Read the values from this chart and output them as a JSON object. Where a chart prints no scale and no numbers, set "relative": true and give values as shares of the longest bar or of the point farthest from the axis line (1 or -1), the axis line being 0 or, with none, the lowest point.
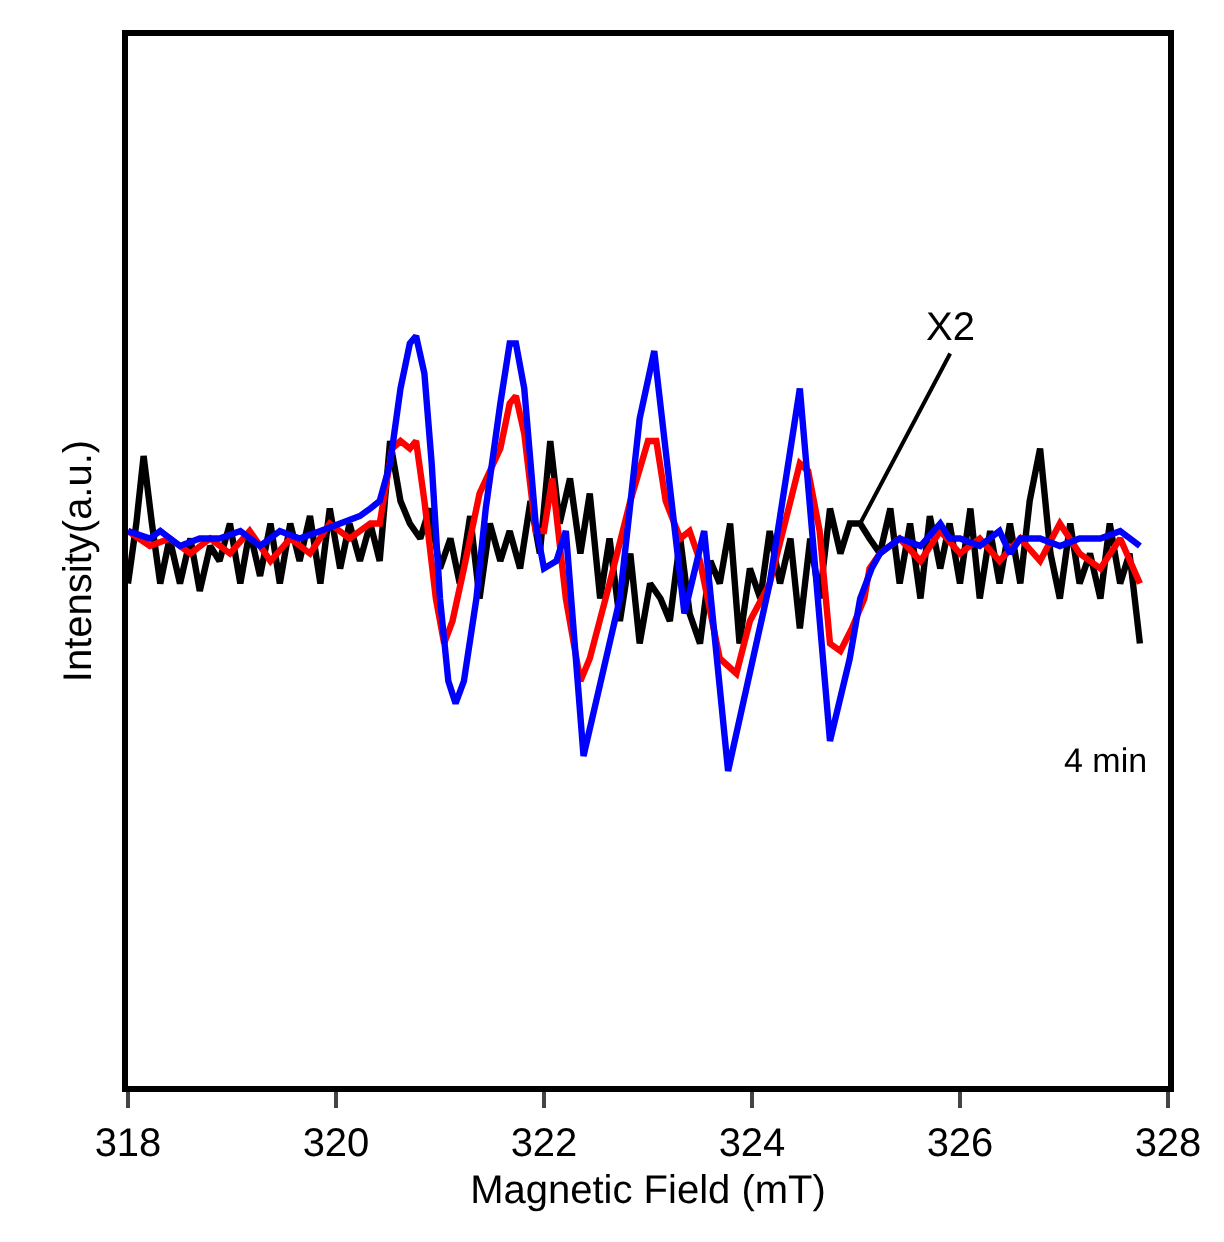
{
  "chart_data": {
    "type": "line",
    "relative": true,
    "xlabel": "Magnetic Field (mT)",
    "ylabel": "Intensity(a.u.)",
    "xlim": [
      318,
      328
    ],
    "xticks": [
      318,
      320,
      322,
      324,
      326,
      328
    ],
    "tick_labels": "x",
    "annotations": [
      {
        "text": "X2",
        "x": 325.04,
        "y": 0.75
      },
      "4 min"
    ],
    "series": [
      {
        "color": "#000000",
        "x": [
          318.0,
          318.08,
          318.15,
          318.23,
          318.31,
          318.4,
          318.5,
          318.6,
          318.69,
          318.79,
          318.88,
          318.98,
          319.08,
          319.17,
          319.27,
          319.37,
          319.46,
          319.56,
          319.65,
          319.75,
          319.85,
          319.94,
          320.04,
          320.13,
          320.23,
          320.33,
          320.42,
          320.52,
          320.62,
          320.71,
          320.81,
          320.9,
          321.0,
          321.1,
          321.19,
          321.29,
          321.38,
          321.48,
          321.58,
          321.67,
          321.77,
          321.87,
          321.96,
          322.06,
          322.15,
          322.25,
          322.35,
          322.44,
          322.54,
          322.63,
          322.73,
          322.83,
          322.92,
          323.02,
          323.12,
          323.21,
          323.31,
          323.4,
          323.5,
          323.6,
          323.69,
          323.79,
          323.88,
          323.98,
          324.08,
          324.17,
          324.27,
          324.37,
          324.46,
          324.56,
          324.65,
          324.75,
          324.85,
          324.94,
          325.04,
          325.13,
          325.23,
          325.33,
          325.42,
          325.52,
          325.62,
          325.71,
          325.81,
          325.9,
          326.0,
          326.1,
          326.19,
          326.29,
          326.38,
          326.48,
          326.58,
          326.67,
          326.77,
          326.87,
          326.96,
          327.06,
          327.15,
          327.25,
          327.35,
          327.44,
          327.54,
          327.63,
          327.73
        ],
        "values": [
          0.67,
          0.75,
          0.84,
          0.75,
          0.67,
          0.73,
          0.67,
          0.73,
          0.66,
          0.72,
          0.7,
          0.75,
          0.67,
          0.74,
          0.68,
          0.75,
          0.67,
          0.75,
          0.7,
          0.76,
          0.67,
          0.77,
          0.69,
          0.75,
          0.7,
          0.75,
          0.7,
          0.86,
          0.78,
          0.75,
          0.73,
          0.77,
          0.69,
          0.73,
          0.67,
          0.76,
          0.65,
          0.75,
          0.7,
          0.74,
          0.69,
          0.78,
          0.71,
          0.86,
          0.75,
          0.81,
          0.71,
          0.79,
          0.65,
          0.73,
          0.62,
          0.71,
          0.59,
          0.67,
          0.65,
          0.62,
          0.73,
          0.63,
          0.59,
          0.7,
          0.67,
          0.75,
          0.59,
          0.69,
          0.65,
          0.74,
          0.67,
          0.73,
          0.61,
          0.73,
          0.65,
          0.77,
          0.71,
          0.75,
          0.75,
          0.73,
          0.71,
          0.77,
          0.67,
          0.75,
          0.65,
          0.76,
          0.69,
          0.75,
          0.67,
          0.77,
          0.65,
          0.74,
          0.67,
          0.75,
          0.67,
          0.78,
          0.85,
          0.71,
          0.65,
          0.75,
          0.67,
          0.71,
          0.65,
          0.75,
          0.67,
          0.71,
          0.59
        ]
      },
      {
        "color": "#ff0000",
        "x": [
          318.0,
          318.21,
          318.4,
          318.6,
          318.79,
          318.98,
          319.17,
          319.37,
          319.56,
          319.75,
          319.94,
          320.13,
          320.33,
          320.42,
          320.54,
          320.62,
          320.71,
          320.77,
          320.85,
          320.96,
          321.04,
          321.12,
          321.23,
          321.38,
          321.58,
          321.67,
          321.73,
          321.81,
          321.92,
          322.0,
          322.08,
          322.21,
          322.35,
          322.44,
          322.63,
          322.83,
          323.0,
          323.08,
          323.17,
          323.31,
          323.4,
          323.5,
          323.69,
          323.85,
          323.98,
          324.17,
          324.37,
          324.46,
          324.54,
          324.65,
          324.75,
          324.85,
          324.96,
          325.08,
          325.13,
          325.23,
          325.42,
          325.62,
          325.81,
          326.0,
          326.19,
          326.38,
          326.58,
          326.77,
          326.96,
          327.15,
          327.35,
          327.54,
          327.73
        ],
        "values": [
          0.74,
          0.72,
          0.73,
          0.71,
          0.73,
          0.71,
          0.74,
          0.7,
          0.73,
          0.71,
          0.75,
          0.73,
          0.75,
          0.75,
          0.85,
          0.86,
          0.85,
          0.86,
          0.78,
          0.65,
          0.59,
          0.62,
          0.69,
          0.79,
          0.85,
          0.91,
          0.92,
          0.87,
          0.74,
          0.74,
          0.81,
          0.65,
          0.54,
          0.57,
          0.67,
          0.78,
          0.86,
          0.86,
          0.78,
          0.73,
          0.74,
          0.7,
          0.57,
          0.55,
          0.62,
          0.67,
          0.78,
          0.83,
          0.82,
          0.74,
          0.59,
          0.58,
          0.61,
          0.65,
          0.69,
          0.71,
          0.73,
          0.7,
          0.74,
          0.71,
          0.73,
          0.7,
          0.73,
          0.7,
          0.75,
          0.71,
          0.69,
          0.73,
          0.67
        ]
      },
      {
        "color": "#0000ff",
        "x": [
          318.0,
          318.21,
          318.31,
          318.5,
          318.69,
          318.88,
          319.08,
          319.27,
          319.46,
          319.65,
          319.85,
          320.04,
          320.23,
          320.33,
          320.42,
          320.52,
          320.62,
          320.71,
          320.77,
          320.85,
          320.92,
          321.0,
          321.08,
          321.15,
          321.23,
          321.35,
          321.44,
          321.58,
          321.67,
          321.73,
          321.81,
          321.92,
          322.0,
          322.12,
          322.21,
          322.38,
          322.73,
          322.92,
          323.06,
          323.35,
          323.54,
          323.77,
          324.17,
          324.46,
          324.75,
          324.94,
          325.04,
          325.15,
          325.23,
          325.42,
          325.62,
          325.81,
          325.9,
          326.0,
          326.19,
          326.38,
          326.48,
          326.58,
          326.77,
          326.96,
          327.15,
          327.35,
          327.54,
          327.73
        ],
        "values": [
          0.74,
          0.73,
          0.74,
          0.72,
          0.73,
          0.73,
          0.74,
          0.72,
          0.74,
          0.73,
          0.74,
          0.75,
          0.76,
          0.77,
          0.78,
          0.83,
          0.93,
          0.99,
          1.0,
          0.95,
          0.83,
          0.65,
          0.54,
          0.51,
          0.54,
          0.65,
          0.77,
          0.91,
          0.99,
          0.99,
          0.93,
          0.75,
          0.69,
          0.7,
          0.74,
          0.44,
          0.65,
          0.89,
          0.98,
          0.63,
          0.74,
          0.42,
          0.67,
          0.93,
          0.46,
          0.57,
          0.65,
          0.69,
          0.71,
          0.73,
          0.72,
          0.75,
          0.73,
          0.73,
          0.72,
          0.74,
          0.71,
          0.73,
          0.73,
          0.72,
          0.73,
          0.73,
          0.74,
          0.72
        ]
      }
    ]
  }
}
